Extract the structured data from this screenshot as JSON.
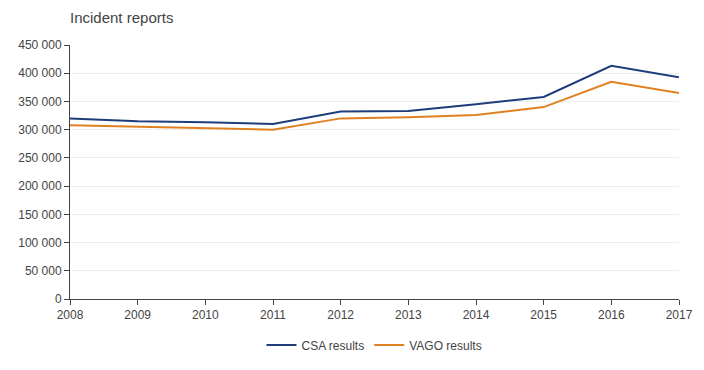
{
  "chart_data": {
    "type": "line",
    "title": "Incident reports",
    "x": [
      2008,
      2009,
      2010,
      2011,
      2012,
      2013,
      2014,
      2015,
      2016,
      2017
    ],
    "xlim": [
      2008,
      2017
    ],
    "xticks": [
      2008,
      2009,
      2010,
      2011,
      2012,
      2013,
      2014,
      2015,
      2016,
      2017
    ],
    "ylim": [
      0,
      450000
    ],
    "yticks": [
      0,
      {
        "value": 50000,
        "label": "50 000"
      },
      {
        "value": 100000,
        "label": "100 000"
      },
      {
        "value": 150000,
        "label": "150 000"
      },
      {
        "value": 200000,
        "label": "200 000"
      },
      {
        "value": 250000,
        "label": "250 000"
      },
      {
        "value": 300000,
        "label": "300 000"
      },
      {
        "value": 350000,
        "label": "350 000"
      },
      {
        "value": 400000,
        "label": "400 000"
      },
      {
        "value": 450000,
        "label": "450 000"
      }
    ],
    "grid": true,
    "legend": "bottom",
    "series": [
      {
        "name": "CSA results",
        "color": "#1f3d7a",
        "values": [
          320000,
          315000,
          313000,
          310000,
          332000,
          333000,
          345000,
          358000,
          413000,
          393000
        ]
      },
      {
        "name": "VAGO results",
        "color": "#e08020",
        "values": [
          308000,
          305000,
          302000,
          300000,
          320000,
          322000,
          326000,
          340000,
          385000,
          365000
        ]
      }
    ]
  }
}
